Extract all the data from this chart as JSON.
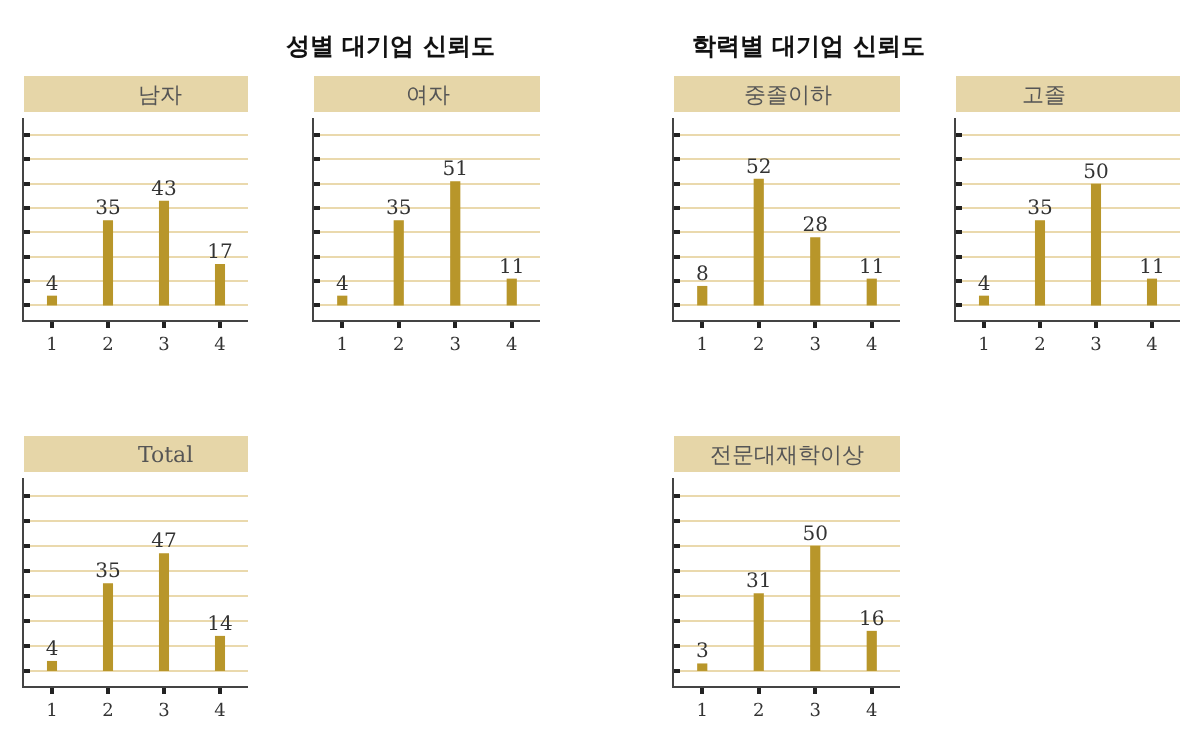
{
  "chart_data": [
    {
      "type": "other",
      "title": "성별 대기업 신뢰도"
    },
    {
      "type": "other",
      "title": "학력별 대기업 신뢰도"
    },
    {
      "type": "bar",
      "title": "남자",
      "categories": [
        "1",
        "2",
        "3",
        "4"
      ],
      "values": [
        4,
        35,
        43,
        17
      ],
      "color": "#b8962a",
      "data_labels": true,
      "ylim": [
        -6,
        77
      ],
      "yticks": [
        {
          "value": 0,
          "label": null
        },
        {
          "value": 10,
          "label": null
        },
        {
          "value": 20,
          "label": null
        },
        {
          "value": 30,
          "label": null
        },
        {
          "value": 40,
          "label": null
        },
        {
          "value": 50,
          "label": null
        },
        {
          "value": 60,
          "label": null
        },
        {
          "value": 70,
          "label": null
        }
      ],
      "grid": "y",
      "tick_labels": "x"
    },
    {
      "type": "bar",
      "title": "여자",
      "categories": [
        "1",
        "2",
        "3",
        "4"
      ],
      "values": [
        4,
        35,
        51,
        11
      ],
      "color": "#b8962a",
      "data_labels": true,
      "ylim": [
        -6,
        77
      ],
      "yticks": [
        {
          "value": 0,
          "label": null
        },
        {
          "value": 10,
          "label": null
        },
        {
          "value": 20,
          "label": null
        },
        {
          "value": 30,
          "label": null
        },
        {
          "value": 40,
          "label": null
        },
        {
          "value": 50,
          "label": null
        },
        {
          "value": 60,
          "label": null
        },
        {
          "value": 70,
          "label": null
        }
      ],
      "grid": "y",
      "tick_labels": "x"
    },
    {
      "type": "bar",
      "title": "중졸이하",
      "categories": [
        "1",
        "2",
        "3",
        "4"
      ],
      "values": [
        8,
        52,
        28,
        11
      ],
      "color": "#b8962a",
      "data_labels": true,
      "ylim": [
        -6,
        77
      ],
      "yticks": [
        {
          "value": 0,
          "label": null
        },
        {
          "value": 10,
          "label": null
        },
        {
          "value": 20,
          "label": null
        },
        {
          "value": 30,
          "label": null
        },
        {
          "value": 40,
          "label": null
        },
        {
          "value": 50,
          "label": null
        },
        {
          "value": 60,
          "label": null
        },
        {
          "value": 70,
          "label": null
        }
      ],
      "grid": "y",
      "tick_labels": "x"
    },
    {
      "type": "bar",
      "title": "고졸",
      "categories": [
        "1",
        "2",
        "3",
        "4"
      ],
      "values": [
        4,
        35,
        50,
        11
      ],
      "color": "#b8962a",
      "data_labels": true,
      "ylim": [
        -6,
        77
      ],
      "yticks": [
        {
          "value": 0,
          "label": null
        },
        {
          "value": 10,
          "label": null
        },
        {
          "value": 20,
          "label": null
        },
        {
          "value": 30,
          "label": null
        },
        {
          "value": 40,
          "label": null
        },
        {
          "value": 50,
          "label": null
        },
        {
          "value": 60,
          "label": null
        },
        {
          "value": 70,
          "label": null
        }
      ],
      "grid": "y",
      "tick_labels": "x"
    },
    {
      "type": "bar",
      "title": "Total",
      "categories": [
        "1",
        "2",
        "3",
        "4"
      ],
      "values": [
        4,
        35,
        47,
        14
      ],
      "color": "#b8962a",
      "data_labels": true,
      "ylim": [
        -6,
        77
      ],
      "yticks": [
        {
          "value": 0,
          "label": null
        },
        {
          "value": 10,
          "label": null
        },
        {
          "value": 20,
          "label": null
        },
        {
          "value": 30,
          "label": null
        },
        {
          "value": 40,
          "label": null
        },
        {
          "value": 50,
          "label": null
        },
        {
          "value": 60,
          "label": null
        },
        {
          "value": 70,
          "label": null
        }
      ],
      "grid": "y",
      "tick_labels": "x"
    },
    {
      "type": "bar",
      "title": "전문대재학이상",
      "categories": [
        "1",
        "2",
        "3",
        "4"
      ],
      "values": [
        3,
        31,
        50,
        16
      ],
      "color": "#b8962a",
      "data_labels": true,
      "ylim": [
        -6,
        77
      ],
      "yticks": [
        {
          "value": 0,
          "label": null
        },
        {
          "value": 10,
          "label": null
        },
        {
          "value": 20,
          "label": null
        },
        {
          "value": 30,
          "label": null
        },
        {
          "value": 40,
          "label": null
        },
        {
          "value": 50,
          "label": null
        },
        {
          "value": 60,
          "label": null
        },
        {
          "value": 70,
          "label": null
        }
      ],
      "grid": "y",
      "tick_labels": "x"
    }
  ]
}
